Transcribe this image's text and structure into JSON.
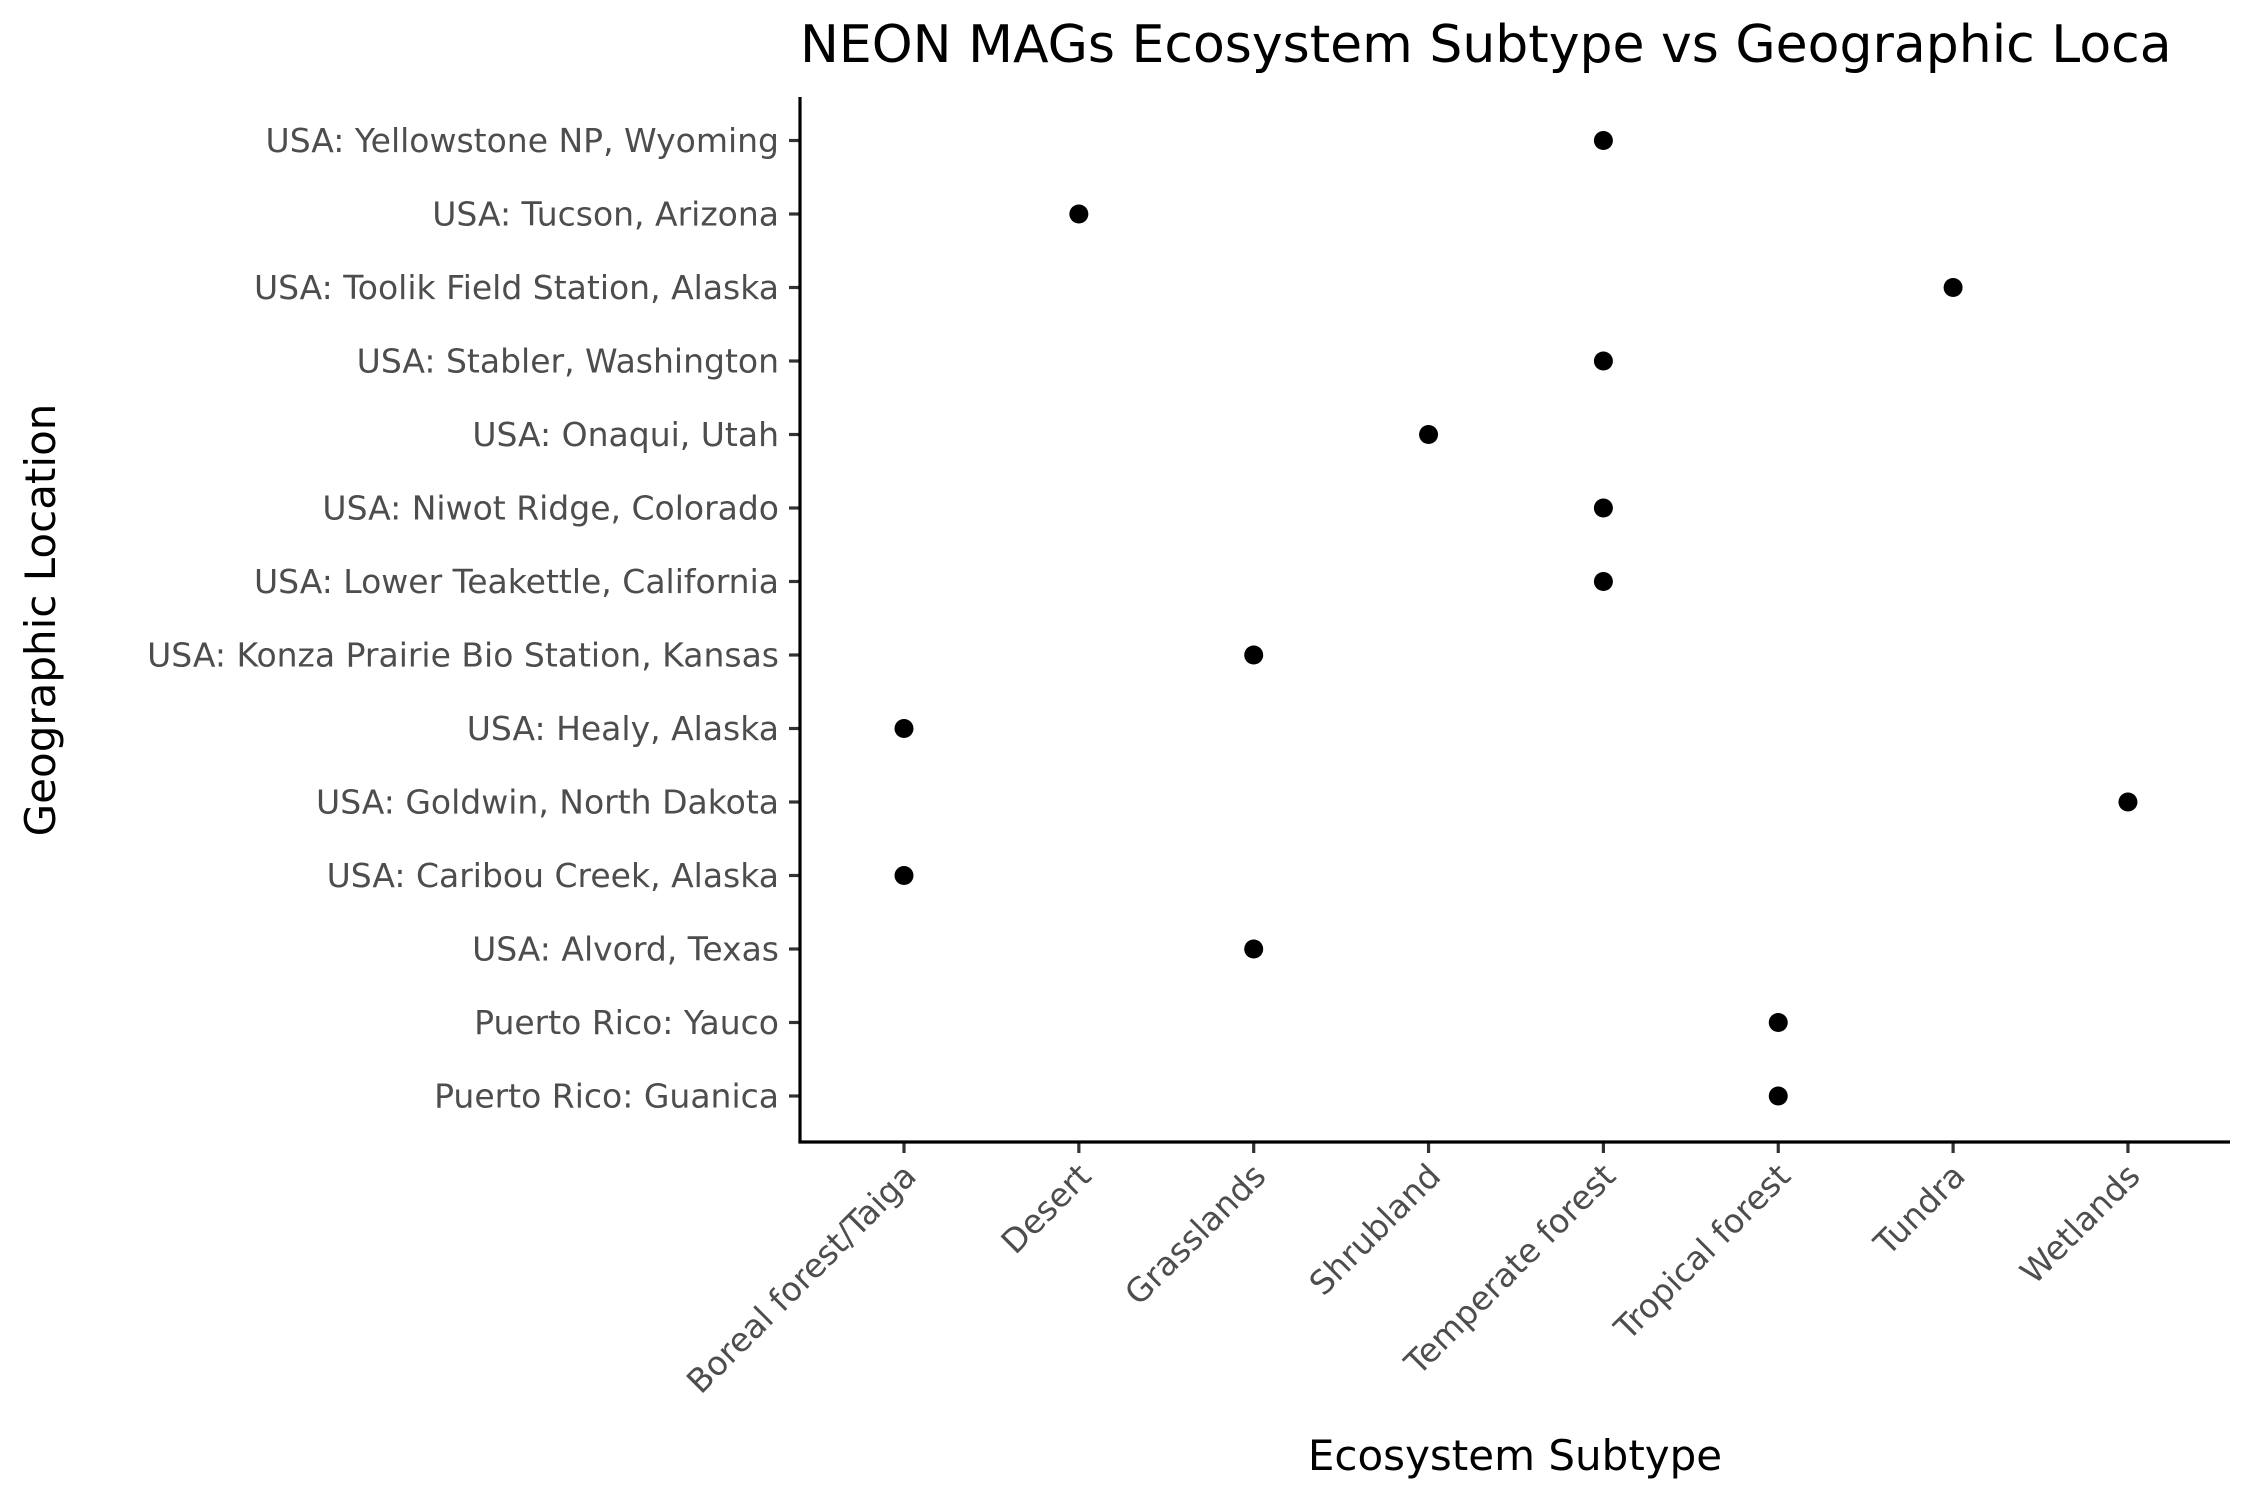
{
  "chart_data": {
    "type": "scatter",
    "title": "NEON MAGs Ecosystem Subtype vs Geographic Loca",
    "xlabel": "Ecosystem Subtype",
    "ylabel": "Geographic Location",
    "x_categories": [
      "Boreal forest/Taiga",
      "Desert",
      "Grasslands",
      "Shrubland",
      "Temperate forest",
      "Tropical forest",
      "Tundra",
      "Wetlands"
    ],
    "y_categories": [
      "Puerto Rico: Guanica",
      "Puerto Rico: Yauco",
      "USA: Alvord, Texas",
      "USA: Caribou Creek, Alaska",
      "USA: Goldwin, North Dakota",
      "USA: Healy, Alaska",
      "USA: Konza Prairie Bio Station, Kansas",
      "USA: Lower Teakettle, California",
      "USA: Niwot Ridge, Colorado",
      "USA: Onaqui, Utah",
      "USA: Stabler, Washington",
      "USA: Toolik Field Station, Alaska",
      "USA: Tucson, Arizona",
      "USA: Yellowstone NP, Wyoming"
    ],
    "points": [
      {
        "x": "Temperate forest",
        "y": "USA: Yellowstone NP, Wyoming"
      },
      {
        "x": "Desert",
        "y": "USA: Tucson, Arizona"
      },
      {
        "x": "Tundra",
        "y": "USA: Toolik Field Station, Alaska"
      },
      {
        "x": "Temperate forest",
        "y": "USA: Stabler, Washington"
      },
      {
        "x": "Shrubland",
        "y": "USA: Onaqui, Utah"
      },
      {
        "x": "Temperate forest",
        "y": "USA: Niwot Ridge, Colorado"
      },
      {
        "x": "Temperate forest",
        "y": "USA: Lower Teakettle, California"
      },
      {
        "x": "Grasslands",
        "y": "USA: Konza Prairie Bio Station, Kansas"
      },
      {
        "x": "Boreal forest/Taiga",
        "y": "USA: Healy, Alaska"
      },
      {
        "x": "Wetlands",
        "y": "USA: Goldwin, North Dakota"
      },
      {
        "x": "Boreal forest/Taiga",
        "y": "USA: Caribou Creek, Alaska"
      },
      {
        "x": "Grasslands",
        "y": "USA: Alvord, Texas"
      },
      {
        "x": "Tropical forest",
        "y": "Puerto Rico: Yauco"
      },
      {
        "x": "Tropical forest",
        "y": "Puerto Rico: Guanica"
      }
    ],
    "grid": false,
    "legend": "none",
    "point_color": "#000000"
  }
}
